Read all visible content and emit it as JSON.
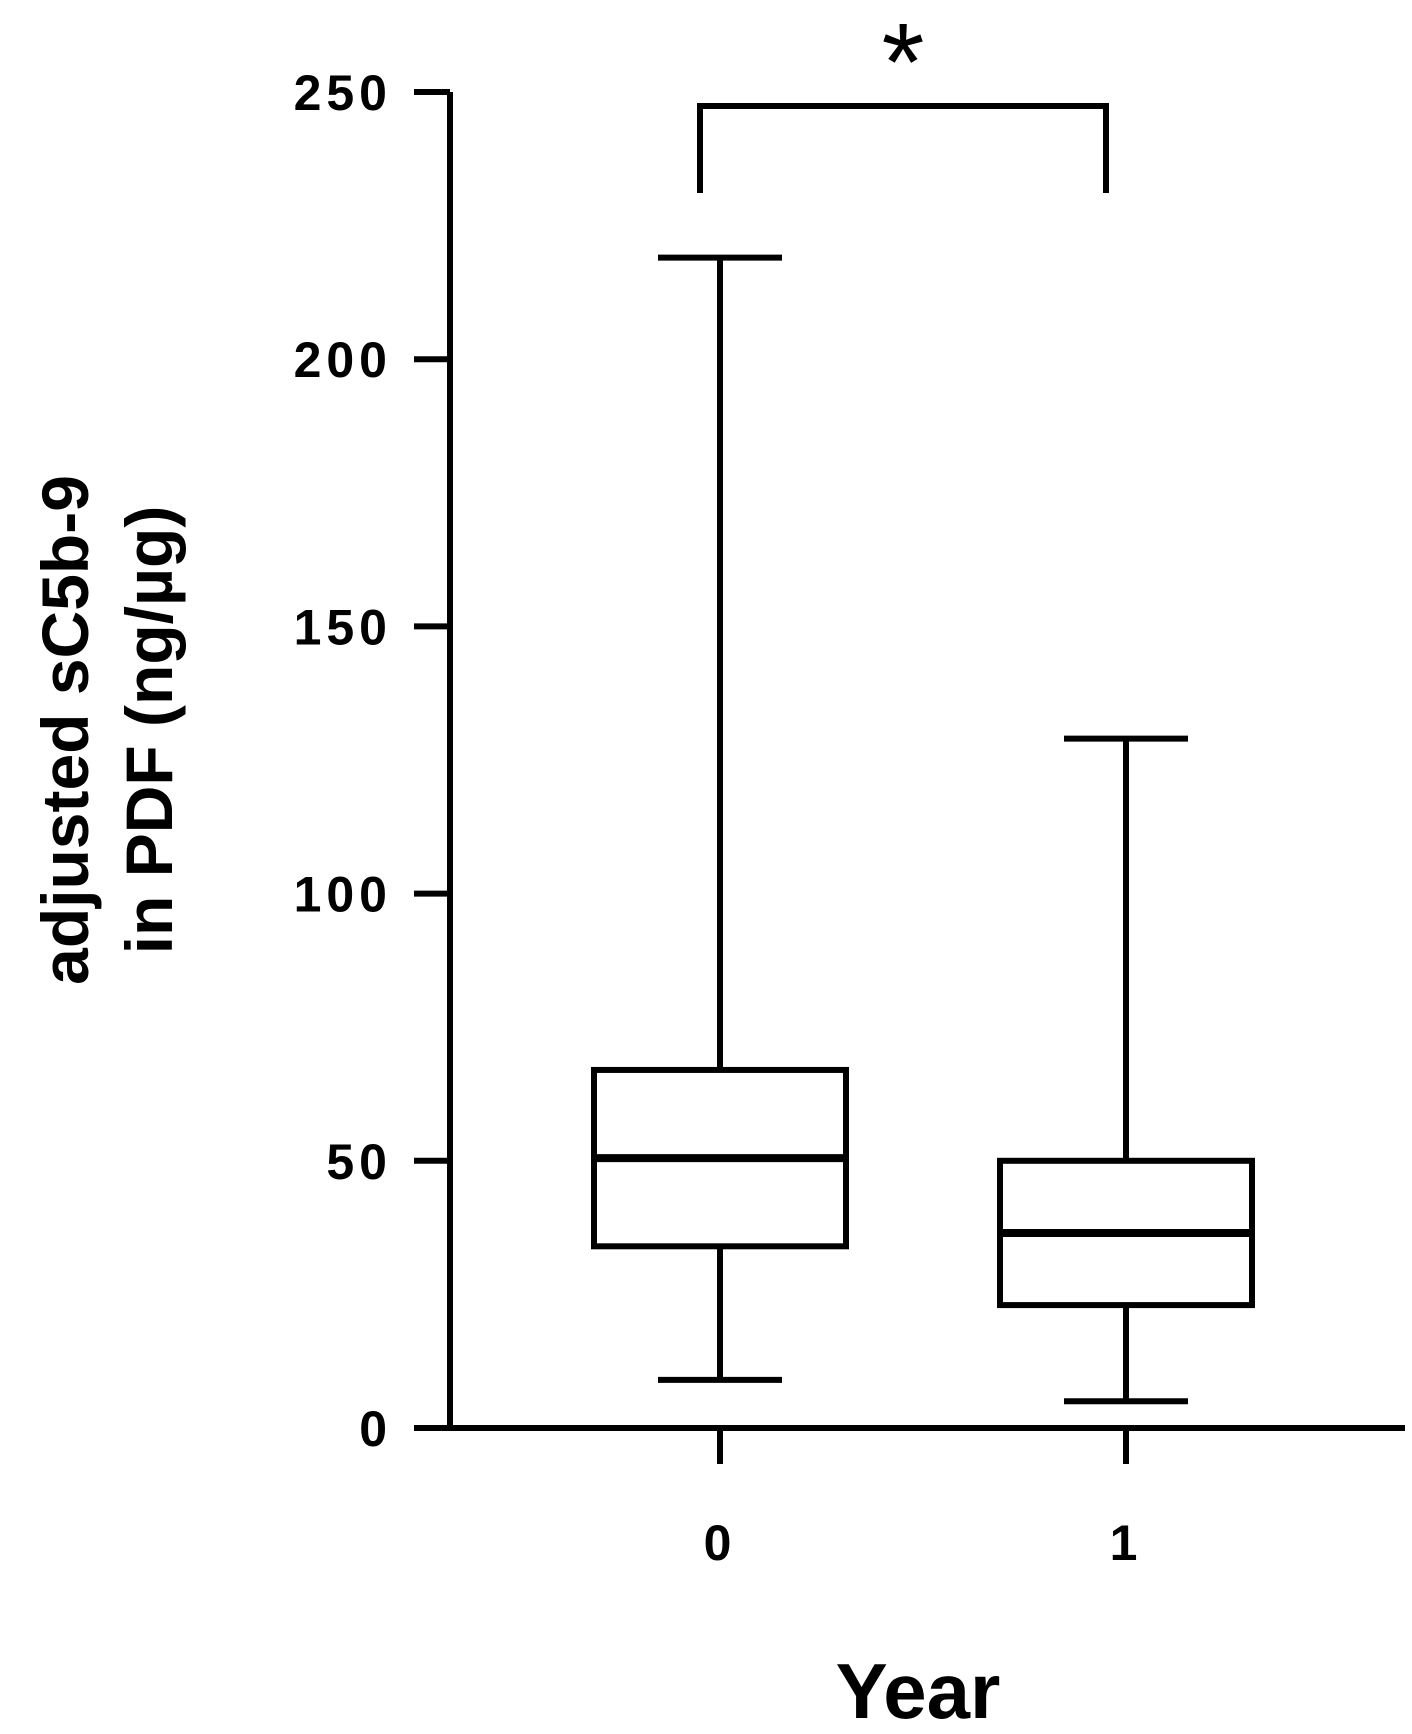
{
  "chart_data": {
    "type": "box",
    "categories": [
      "0",
      "1"
    ],
    "boxes": [
      {
        "category": "0",
        "min": 9,
        "q1": 34,
        "median": 50.5,
        "q3": 67,
        "max": 219
      },
      {
        "category": "1",
        "min": 5,
        "q1": 23,
        "median": 36.5,
        "q3": 50,
        "max": 129
      }
    ],
    "ylabel_lines": [
      "adjusted sC5b-9",
      "in PDF (ng/µg)"
    ],
    "xlabel": "Year",
    "ylim": [
      0,
      250
    ],
    "yticks": [
      0,
      50,
      100,
      150,
      200,
      250
    ],
    "significance": {
      "between": [
        "0",
        "1"
      ],
      "marker": "*"
    },
    "grid": false,
    "legend": "none"
  }
}
